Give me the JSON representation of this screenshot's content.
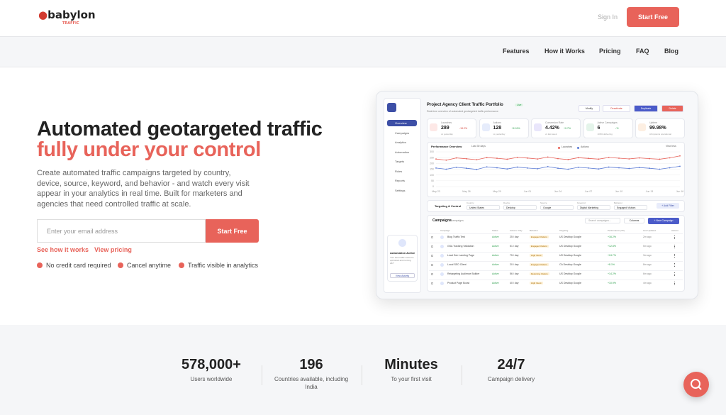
{
  "header": {
    "logo": "babylon",
    "logo_sub": "TRAFFIC",
    "sign_in": "Sign In",
    "cta": "Start Free"
  },
  "nav": [
    "Features",
    "How it Works",
    "Pricing",
    "FAQ",
    "Blog"
  ],
  "hero": {
    "title_line1": "Automated geotargeted traffic",
    "title_line2": "fully under your control",
    "description": "Create automated traffic campaigns targeted by country, device, source, keyword, and behavior - and watch every visit appear in your analytics in real time. Built for marketers and agencies that need controlled traffic at scale.",
    "email_placeholder": "Enter your email address",
    "submit": "Start Free",
    "links": [
      "See how it works",
      "View pricing"
    ],
    "checks": [
      "No credit card required",
      "Cancel anytime",
      "Traffic visible in analytics"
    ]
  },
  "dashboard": {
    "title": "Project Agency Client Traffic Portfolio",
    "badge": "Live",
    "subtitle": "Real-time overview of automated geotargeted traffic performance",
    "buttons": [
      "Modify",
      "Deactivate",
      "Duplicate",
      "Delete"
    ],
    "sidebar": [
      "Overview",
      "Campaigns",
      "Analytics",
      "Automation",
      "Targets",
      "Rules",
      "Reports",
      "Settings"
    ],
    "automation": {
      "title": "Automation Active",
      "text": "Your best traffic control is optimized and running 24/7",
      "button": "View Activity"
    },
    "cards": [
      {
        "label": "Launches",
        "value": "289",
        "change": "-19.2%",
        "note": "vs yesterday"
      },
      {
        "label": "Actions",
        "value": "128",
        "change": "+12.6%",
        "note": "vs yesterday"
      },
      {
        "label": "Conversion Rate",
        "value": "4.42%",
        "change": "+0.7%",
        "note": "vs last week"
      },
      {
        "label": "Active Campaigns",
        "value": "6",
        "change": "/ 8",
        "note": "100% delivering"
      },
      {
        "label": "Uptime",
        "value": "99.98%",
        "change": "",
        "note": "All systems operational"
      }
    ],
    "chart_data": {
      "type": "line",
      "title": "Performance Overview",
      "range": "Last 30 days",
      "view": "View less",
      "categories": [
        "May 23",
        null,
        null,
        "May 26",
        null,
        null,
        "May 29",
        null,
        null,
        "Jun 01",
        null,
        null,
        "Jun 04",
        null,
        null,
        "Jun 07",
        null,
        null,
        "Jun 10",
        null,
        null,
        "Jun 13",
        null,
        null,
        "Jun 16"
      ],
      "series": [
        {
          "name": "Launches",
          "color": "#e8635a",
          "values": [
            238,
            228,
            247,
            240,
            232,
            250,
            244,
            236,
            252,
            246,
            238,
            255,
            241,
            233,
            249,
            243,
            237,
            251,
            245,
            239,
            247,
            241,
            236,
            248,
            265
          ]
        },
        {
          "name": "Actions",
          "color": "#5b7bd5",
          "values": [
            160,
            150,
            166,
            158,
            148,
            170,
            162,
            152,
            168,
            160,
            154,
            172,
            158,
            150,
            166,
            160,
            152,
            168,
            162,
            156,
            164,
            158,
            150,
            162,
            175
          ]
        }
      ],
      "ylim": [
        0,
        300
      ],
      "yticks": [
        0,
        50,
        100,
        150,
        200,
        250,
        300
      ],
      "grid": true
    },
    "targeting": {
      "title": "Targeting & Control",
      "filters": [
        {
          "label": "Country",
          "value": "United States"
        },
        {
          "label": "Device",
          "value": "Desktop"
        },
        {
          "label": "Source",
          "value": "Google"
        },
        {
          "label": "Keyword",
          "value": "Digital Marketing"
        },
        {
          "label": "Behavior",
          "value": "Engaged Visitors"
        }
      ],
      "add": "+ Add Filter"
    },
    "campaigns": {
      "title": "Campaigns",
      "count": "6 campaigns",
      "search": "Search campaigns...",
      "columns": "Columns",
      "new": "+ New Campaign",
      "headers": [
        "Campaign",
        "Status",
        "Actions / Day",
        "Behavior",
        "Targeting",
        "Performance (7D)",
        "Last Updated",
        "Actions"
      ],
      "rows": [
        [
          "Blog Traffic Test",
          "Active",
          "25 / day",
          "Engaged Visitors",
          "US Desktop Google",
          "+16.2%",
          "2m ago"
        ],
        [
          "GSA Tracking Validation",
          "Active",
          "51 / day",
          "Engaged Visitors",
          "US Desktop Google",
          "+12.8%",
          "5m ago"
        ],
        [
          "Lead Gen Landing Page",
          "Active",
          "75 / day",
          "High Intent",
          "US Desktop Google",
          "+24.7%",
          "3m ago"
        ],
        [
          "Local SEO Client",
          "Active",
          "20 / day",
          "Engaged Visitors",
          "CA Desktop Google",
          "+8.1%",
          "8m ago"
        ],
        [
          "Retargeting Audience Builder",
          "Active",
          "56 / day",
          "Returning Visitors",
          "US Desktop Google",
          "+14.2%",
          "6m ago"
        ],
        [
          "Product Page Boost",
          "Active",
          "40 / day",
          "High Intent",
          "US Desktop Google",
          "+10.9%",
          "4m ago"
        ]
      ]
    }
  },
  "stats": [
    {
      "value": "578,000+",
      "label": "Users worldwide"
    },
    {
      "value": "196",
      "label": "Countries available, including India"
    },
    {
      "value": "Minutes",
      "label": "To your first visit"
    },
    {
      "value": "24/7",
      "label": "Campaign delivery"
    }
  ]
}
